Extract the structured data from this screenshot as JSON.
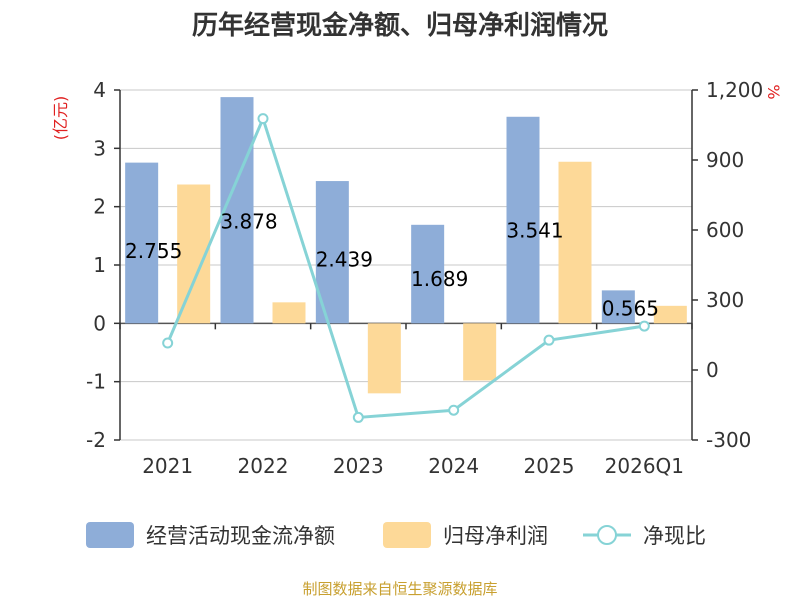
{
  "chart_data": {
    "type": "bar",
    "title": "历年经营现金净额、归母净利润情况",
    "categories": [
      "2021",
      "2022",
      "2023",
      "2024",
      "2025",
      "2026Q1"
    ],
    "series": [
      {
        "name": "经营活动现金流净额",
        "axis": "left",
        "kind": "bar",
        "color": "#8eadd8",
        "values": [
          2.755,
          3.878,
          2.439,
          1.689,
          3.541,
          0.565
        ],
        "labels": [
          "2.755",
          "3.878",
          "2.439",
          "1.689",
          "3.541",
          "0.565"
        ]
      },
      {
        "name": "归母净利润",
        "axis": "left",
        "kind": "bar",
        "color": "#fdd998",
        "values": [
          2.38,
          0.36,
          -1.2,
          -0.98,
          2.77,
          0.3
        ]
      },
      {
        "name": "净现比",
        "axis": "right",
        "kind": "line",
        "color": "#86d3d6",
        "values": [
          115.8,
          1077.2,
          -203.3,
          -172.3,
          127.8,
          188.3
        ]
      }
    ],
    "y_left": {
      "unit": "(亿元)",
      "ylim": [
        -2,
        4
      ],
      "ticks": [
        "4",
        "3",
        "2",
        "1",
        "0",
        "-1",
        "-2"
      ]
    },
    "y_right": {
      "unit": "%",
      "ylim": [
        -300,
        1200
      ],
      "ticks": [
        "1,200",
        "900",
        "600",
        "300",
        "0",
        "-300"
      ]
    },
    "grid": true,
    "legend_position": "bottom"
  },
  "footer": {
    "source": "制图数据来自恒生聚源数据库"
  }
}
